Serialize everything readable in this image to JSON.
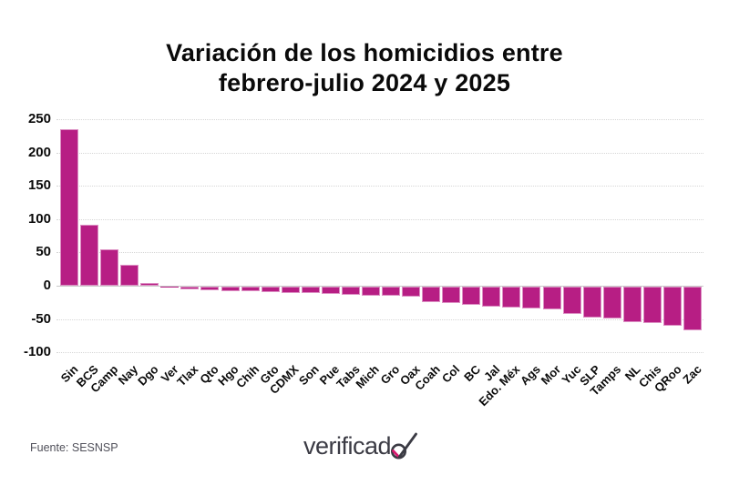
{
  "title": {
    "line1": "Variación de los homicidios entre",
    "line2": "febrero-julio 2024 y 2025"
  },
  "source": {
    "label": "Fuente: SESNSP"
  },
  "logo": {
    "text": "verificado",
    "text_main": "verificad",
    "icon": "check-o-icon"
  },
  "colors": {
    "bar": "#b71e84",
    "bar_edge": "#dc8fc3",
    "grid": "#d6d6d6",
    "zero_line": "#c9c9c9",
    "title_text": "#0a0a0a",
    "axis_text": "#0a0a0a",
    "source_text": "#50505a",
    "logo_text": "#3b3b44",
    "logo_check_accent": "#d9186e"
  },
  "chart_data": {
    "type": "bar",
    "title": "Variación de los homicidios entre febrero-julio 2024 y 2025",
    "xlabel": "",
    "ylabel": "",
    "ylim": [
      -100,
      250
    ],
    "yticks": [
      250,
      200,
      150,
      100,
      50,
      0,
      -50,
      -100
    ],
    "grid": true,
    "legend": false,
    "bar_color": "#b71e84",
    "categories": [
      "Sin",
      "BCS",
      "Camp",
      "Nay",
      "Dgo",
      "Ver",
      "Tlax",
      "Qto",
      "Hgo",
      "Chih",
      "Gto",
      "CDMX",
      "Son",
      "Pue",
      "Tabs",
      "Mich",
      "Gro",
      "Oax",
      "Coah",
      "Col",
      "BC",
      "Jal",
      "Edo. Méx",
      "Ags",
      "Mor",
      "Yuc",
      "SLP",
      "Tamps",
      "NL",
      "Chis",
      "QRoo",
      "Zac"
    ],
    "values": [
      235,
      91,
      54,
      31,
      4,
      -1,
      -4,
      -6,
      -7,
      -7,
      -8,
      -9,
      -10,
      -11,
      -12,
      -13,
      -14,
      -15,
      -23,
      -25,
      -28,
      -30,
      -31,
      -33,
      -34,
      -41,
      -46,
      -48,
      -53,
      -54,
      -59,
      -65
    ]
  }
}
